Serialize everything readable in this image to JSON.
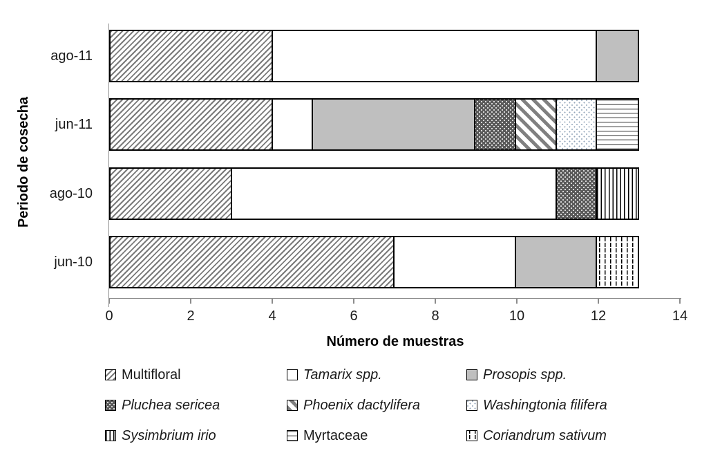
{
  "chart_data": {
    "type": "bar",
    "orientation": "horizontal",
    "stacked": true,
    "title": "",
    "xlabel": "Número de muestras",
    "ylabel": "Periodo de cosecha",
    "xlim": [
      0,
      14
    ],
    "x_ticks": [
      "0",
      "2",
      "4",
      "6",
      "8",
      "10",
      "12",
      "14"
    ],
    "grid": false,
    "legend_position": "bottom",
    "categories": [
      "ago-11",
      "jun-11",
      "ago-10",
      "jun-10"
    ],
    "category_totals": [
      13,
      13,
      13,
      13
    ],
    "series": [
      {
        "key": "multifloral",
        "name": "Multifloral",
        "italic": false,
        "pattern": "diagonal-forward-hatch",
        "values": [
          4,
          4,
          3,
          7
        ]
      },
      {
        "key": "tamarix",
        "name": "Tamarix spp.",
        "italic": true,
        "pattern": "solid-white",
        "values": [
          8,
          1,
          8,
          3
        ]
      },
      {
        "key": "prosopis",
        "name": "Prosopis spp.",
        "italic": true,
        "pattern": "solid-gray",
        "values": [
          1,
          4,
          0,
          2
        ]
      },
      {
        "key": "pluchea",
        "name": "Pluchea sericea",
        "italic": true,
        "pattern": "dark-with-white-dots",
        "values": [
          0,
          1,
          1,
          0
        ]
      },
      {
        "key": "phoenix",
        "name": "Phoenix dactylifera",
        "italic": true,
        "pattern": "diagonal-back-stripes",
        "values": [
          0,
          1,
          0,
          0
        ]
      },
      {
        "key": "washingtonia",
        "name": "Washingtonia filifera",
        "italic": true,
        "pattern": "sparse-light-dots",
        "values": [
          0,
          1,
          0,
          0
        ]
      },
      {
        "key": "sysimbrium",
        "name": "Sysimbrium irio",
        "italic": true,
        "pattern": "vertical-lines",
        "values": [
          0,
          0,
          1,
          0
        ]
      },
      {
        "key": "myrtaceae",
        "name": "Myrtaceae",
        "italic": false,
        "pattern": "horizontal-lines",
        "values": [
          0,
          1,
          0,
          0
        ]
      },
      {
        "key": "coriandrum",
        "name": "Coriandrum sativum",
        "italic": true,
        "pattern": "vertical-dashes",
        "values": [
          0,
          0,
          0,
          1
        ]
      }
    ],
    "colors": {
      "bar_border": "#000000",
      "hatch_gray": "#7a7a7a",
      "stripe_gray": "#808080",
      "solid_gray": "#bfbfbf",
      "dark_fill": "#595959",
      "dot_blue_gray": "#93a5ba",
      "axis_gray": "#8c8c8c",
      "text": "#1a1a1a",
      "background": "#ffffff"
    }
  }
}
